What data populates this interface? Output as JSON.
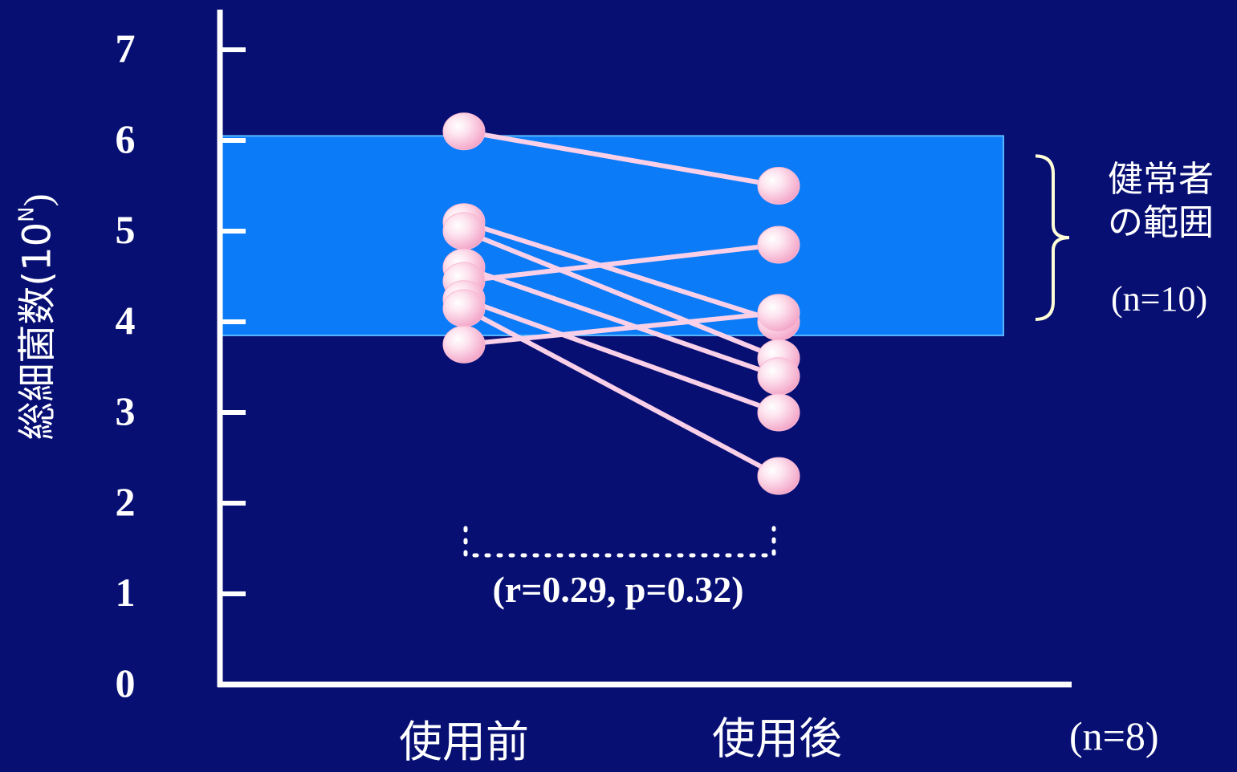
{
  "chart_data": {
    "type": "line",
    "ylabel": "総細菌数(10",
    "ylabel_sup": "N",
    "ylabel_close": ")",
    "ylim": [
      0,
      7
    ],
    "yticks": [
      "0",
      "1",
      "2",
      "3",
      "4",
      "5",
      "6",
      "7"
    ],
    "categories": [
      "使用前",
      "使用後"
    ],
    "series": [
      {
        "values": [
          6.1,
          5.5
        ]
      },
      {
        "values": [
          5.1,
          4.0
        ]
      },
      {
        "values": [
          5.0,
          3.6
        ]
      },
      {
        "values": [
          4.6,
          3.4
        ]
      },
      {
        "values": [
          4.45,
          4.85
        ]
      },
      {
        "values": [
          4.25,
          3.0
        ]
      },
      {
        "values": [
          4.15,
          2.3
        ]
      },
      {
        "values": [
          3.75,
          4.1
        ]
      }
    ],
    "normal_range": {
      "low": 3.85,
      "high": 6.05,
      "label": "健常者の範囲",
      "n": "(n=10)"
    },
    "annotation": "(r=0.29, p=0.32)",
    "sample_size": "(n=8)",
    "colors": {
      "background": "#070F73",
      "range_band": "#0B7BF7",
      "line": "#F9D0E8",
      "point": "#F9B9D4",
      "axis": "#FFFFFF",
      "brace": "#FFFFD8"
    }
  }
}
